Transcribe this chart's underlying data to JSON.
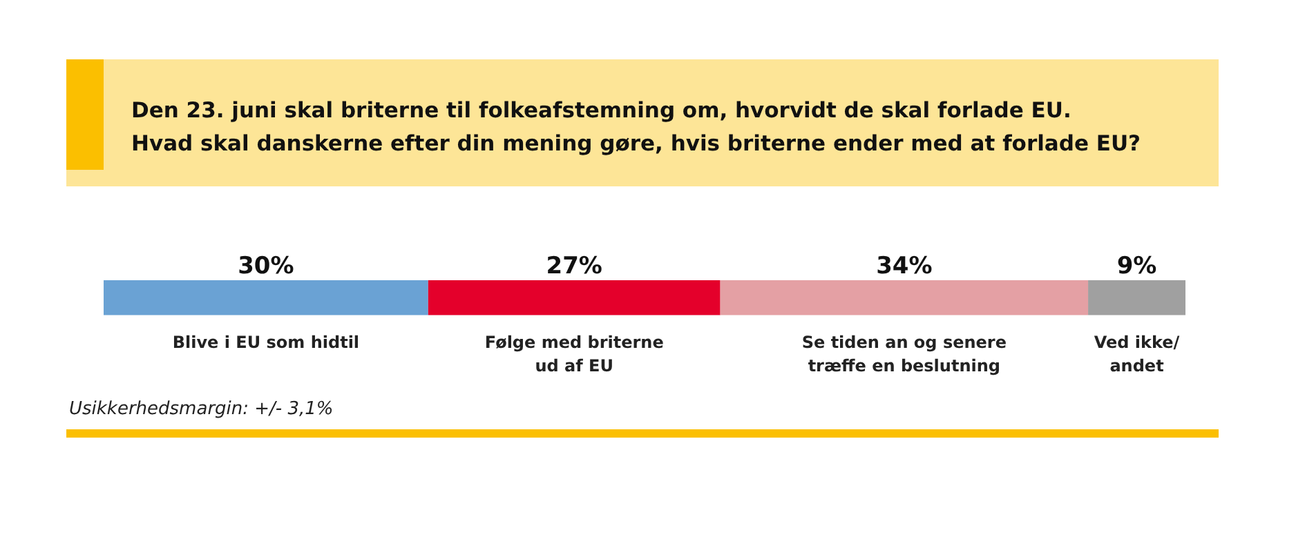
{
  "chart_data": {
    "type": "bar",
    "orientation": "horizontal",
    "stacked": true,
    "title": "Den 23. juni skal briterne til folkeafstemning om, hvorvidt de skal forlade EU.\nHvad skal danskerne efter din mening gøre, hvis briterne ender med at forlade EU?",
    "categories": [
      null
    ],
    "legend": false,
    "series": [
      {
        "name": "Blive i EU som hidtil",
        "color": "#6aa2d4",
        "values": [
          30
        ],
        "value_labels": [
          "30%"
        ]
      },
      {
        "name": "Følge med briterne\nud af EU",
        "color": "#e4002b",
        "values": [
          27
        ],
        "value_labels": [
          "27%"
        ]
      },
      {
        "name": "Se tiden an og senere\ntræffe en beslutning",
        "color": "#e4a0a4",
        "values": [
          34
        ],
        "value_labels": [
          "34%"
        ]
      },
      {
        "name": "Ved ikke/\nandet",
        "color": "#a0a0a0",
        "values": [
          9
        ],
        "value_labels": [
          "9%"
        ]
      }
    ],
    "annotations": [
      "Usikkerhedsmargin: +/- 3,1%"
    ]
  }
}
